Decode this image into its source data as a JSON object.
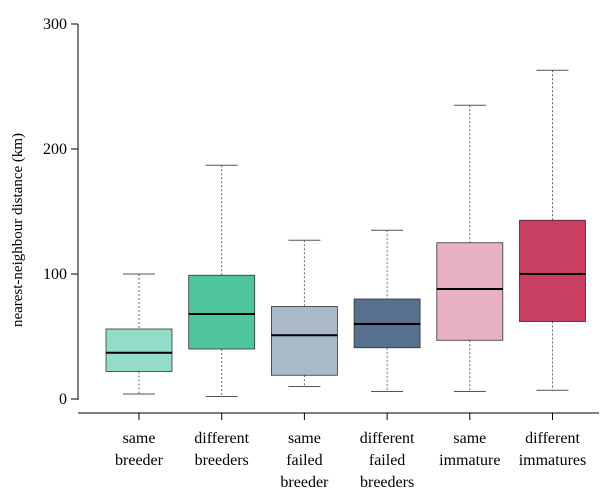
{
  "chart_data": {
    "type": "box",
    "ylabel": "nearest-neighbour distance (km)",
    "ylim": [
      0,
      300
    ],
    "yticks": [
      0,
      100,
      200,
      300
    ],
    "ytick_labels": [
      "0",
      "100",
      "200",
      "300"
    ],
    "grid": false,
    "legend": "none",
    "categories": [
      {
        "lines": [
          "same",
          "breeder"
        ]
      },
      {
        "lines": [
          "different",
          "breeders"
        ]
      },
      {
        "lines": [
          "same",
          "failed",
          "breeder"
        ]
      },
      {
        "lines": [
          "different",
          "failed",
          "breeders"
        ]
      },
      {
        "lines": [
          "same",
          "immature"
        ]
      },
      {
        "lines": [
          "different",
          "immatures"
        ]
      }
    ],
    "boxes": [
      {
        "min": 4,
        "q1": 22,
        "median": 37,
        "q3": 56,
        "max": 100,
        "color": "#93dcc7"
      },
      {
        "min": 2,
        "q1": 40,
        "median": 68,
        "q3": 99,
        "max": 187,
        "color": "#4fc59e"
      },
      {
        "min": 10,
        "q1": 19,
        "median": 51,
        "q3": 74,
        "max": 127,
        "color": "#a9b9c7"
      },
      {
        "min": 6,
        "q1": 41,
        "median": 60,
        "q3": 80,
        "max": 135,
        "color": "#56708e"
      },
      {
        "min": 6,
        "q1": 47,
        "median": 88,
        "q3": 125,
        "max": 235,
        "color": "#e8b1c1"
      },
      {
        "min": 7,
        "q1": 62,
        "median": 100,
        "q3": 143,
        "max": 263,
        "color": "#c93f62"
      }
    ]
  }
}
